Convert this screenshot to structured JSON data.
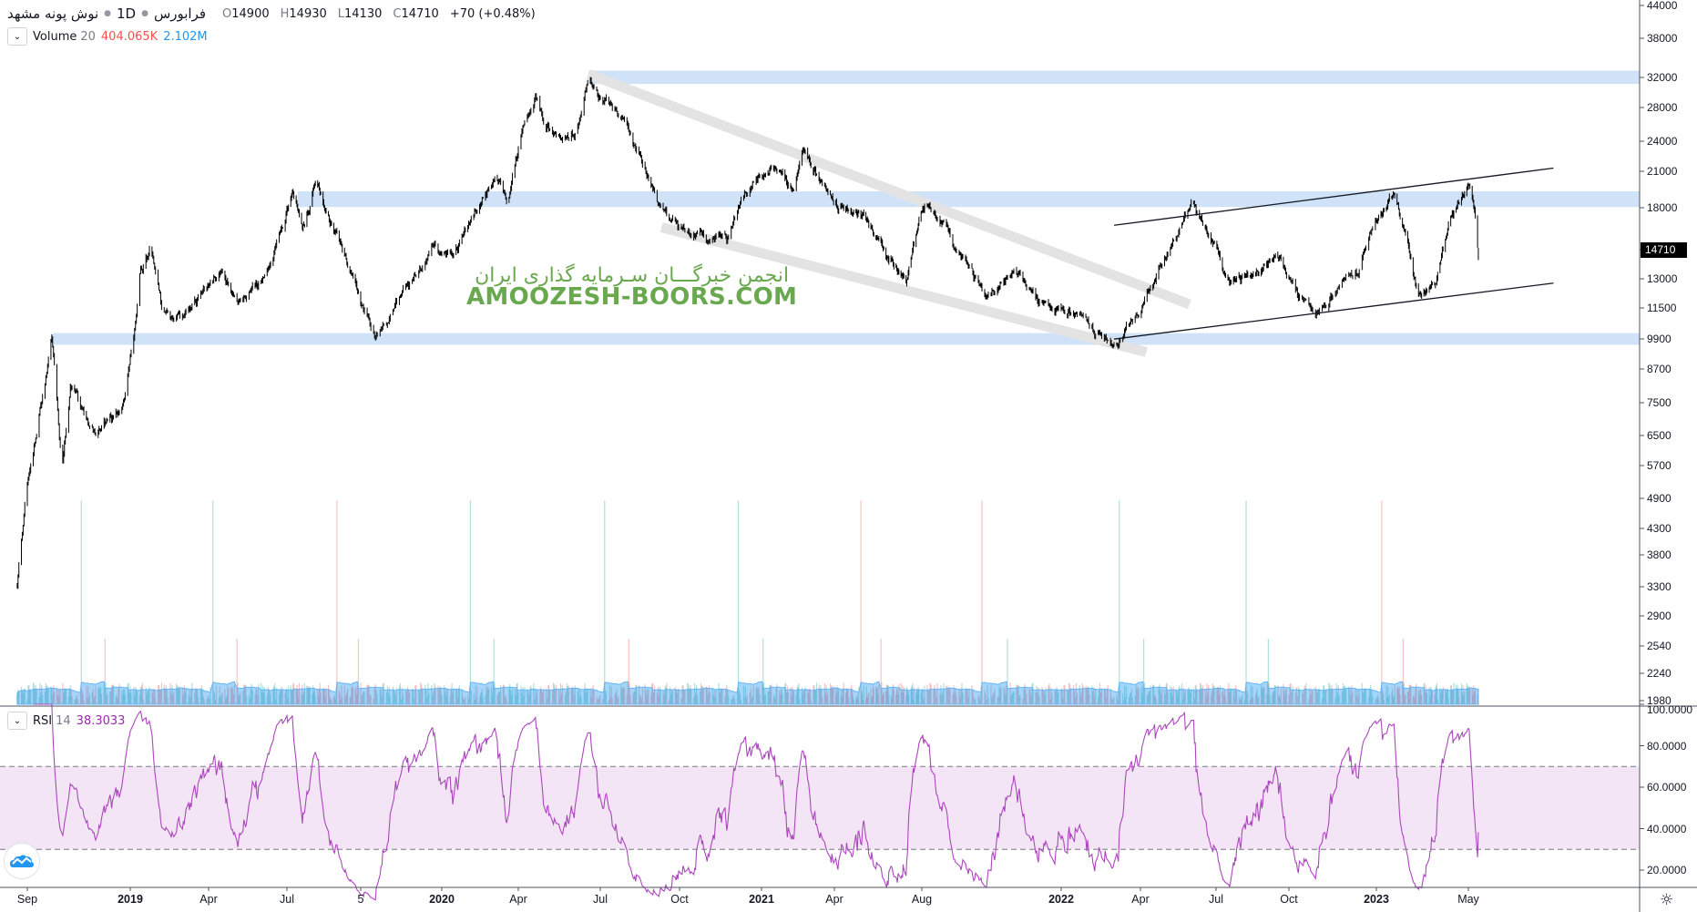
{
  "header": {
    "symbol": "نوش پونه مشهد",
    "interval": "1D",
    "exchange": "فرابورس",
    "open_label": "O",
    "open": "14900",
    "high_label": "H",
    "high": "14930",
    "low_label": "L",
    "low": "14130",
    "close_label": "C",
    "close": "14710",
    "change": "+70 (+0.48%)"
  },
  "volume_legend": {
    "name": "Volume",
    "period": "20",
    "value": "404.065K",
    "ma_value": "2.102M",
    "value_color": "#ef5350",
    "ma_color": "#2196f3"
  },
  "rsi_legend": {
    "name": "RSI",
    "period": "14",
    "value": "38.3033",
    "color": "#9c27b0"
  },
  "watermark": {
    "line1": "انجمن خبرگـــان سـرمایه گذاری ایران",
    "line2": "AMOOZESH-BOORS.COM",
    "color": "#6aa84f"
  },
  "price_axis": {
    "scale": "log",
    "ticks": [
      "44000",
      "38000",
      "32000",
      "28000",
      "24000",
      "21000",
      "18000",
      "13000",
      "11500",
      "9900",
      "8700",
      "7500",
      "6500",
      "5700",
      "4900",
      "4300",
      "3800",
      "3300",
      "2900",
      "2540",
      "2240",
      "1980"
    ],
    "last_price": "14710"
  },
  "rsi_axis": {
    "ticks": [
      "100.0000",
      "80.0000",
      "60.0000",
      "40.0000",
      "20.0000"
    ],
    "upper_band": 70,
    "lower_band": 30
  },
  "time_axis": {
    "ticks": [
      {
        "label": "Sep",
        "date": "2018-09-01"
      },
      {
        "label": "2019",
        "date": "2019-01-01"
      },
      {
        "label": "Apr",
        "date": "2019-04-01"
      },
      {
        "label": "Jul",
        "date": "2019-07-01"
      },
      {
        "label": "5",
        "date": "2019-10-05"
      },
      {
        "label": "2020",
        "date": "2020-01-01"
      },
      {
        "label": "Apr",
        "date": "2020-04-01"
      },
      {
        "label": "Jul",
        "date": "2020-07-01"
      },
      {
        "label": "Oct",
        "date": "2020-10-01"
      },
      {
        "label": "2021",
        "date": "2021-01-01"
      },
      {
        "label": "Apr",
        "date": "2021-04-01"
      },
      {
        "label": "Aug",
        "date": "2021-08-01"
      },
      {
        "label": "2022",
        "date": "2022-01-01"
      },
      {
        "label": "Apr",
        "date": "2022-04-01"
      },
      {
        "label": "Jul",
        "date": "2022-07-01"
      },
      {
        "label": "Oct",
        "date": "2022-10-01"
      },
      {
        "label": "2023",
        "date": "2023-01-01"
      },
      {
        "label": "May",
        "date": "2023-05-01"
      }
    ]
  },
  "chart_data": {
    "type": "candlestick",
    "price_scale": "log",
    "ylim": [
      1980,
      44000
    ],
    "close_waypoints": [
      [
        "2018-08-20",
        3300
      ],
      [
        "2018-08-29",
        4700
      ],
      [
        "2018-09-30",
        10000
      ],
      [
        "2018-10-12",
        5600
      ],
      [
        "2018-10-22",
        8000
      ],
      [
        "2018-11-22",
        6300
      ],
      [
        "2018-12-25",
        7500
      ],
      [
        "2019-01-07",
        10500
      ],
      [
        "2019-01-12",
        13000
      ],
      [
        "2019-01-25",
        15000
      ],
      [
        "2019-02-07",
        11000
      ],
      [
        "2019-03-10",
        11000
      ],
      [
        "2019-04-15",
        13500
      ],
      [
        "2019-05-07",
        11500
      ],
      [
        "2019-06-05",
        13000
      ],
      [
        "2019-07-08",
        19000
      ],
      [
        "2019-07-21",
        16000
      ],
      [
        "2019-08-08",
        20500
      ],
      [
        "2019-08-22",
        17500
      ],
      [
        "2019-09-15",
        14000
      ],
      [
        "2019-10-20",
        10000
      ],
      [
        "2019-11-20",
        12000
      ],
      [
        "2019-12-25",
        15000
      ],
      [
        "2020-01-15",
        14000
      ],
      [
        "2020-02-10",
        17500
      ],
      [
        "2020-03-05",
        20500
      ],
      [
        "2020-03-20",
        18000
      ],
      [
        "2020-04-05",
        25000
      ],
      [
        "2020-04-20",
        29500
      ],
      [
        "2020-04-30",
        26000
      ],
      [
        "2020-05-20",
        23500
      ],
      [
        "2020-06-07",
        26000
      ],
      [
        "2020-06-18",
        32500
      ],
      [
        "2020-07-01",
        29000
      ],
      [
        "2020-07-27",
        26000
      ],
      [
        "2020-08-28",
        20000
      ],
      [
        "2020-09-20",
        16500
      ],
      [
        "2020-10-15",
        15800
      ],
      [
        "2020-11-25",
        15200
      ],
      [
        "2020-12-10",
        18500
      ],
      [
        "2020-12-28",
        20500
      ],
      [
        "2021-01-20",
        21000
      ],
      [
        "2021-02-10",
        19000
      ],
      [
        "2021-02-20",
        23500
      ],
      [
        "2021-03-25",
        18500
      ],
      [
        "2021-05-05",
        17500
      ],
      [
        "2021-06-15",
        14000
      ],
      [
        "2021-07-10",
        13000
      ],
      [
        "2021-08-05",
        18000
      ],
      [
        "2021-08-25",
        16500
      ],
      [
        "2021-09-20",
        13500
      ],
      [
        "2021-10-10",
        11800
      ],
      [
        "2021-11-10",
        13500
      ],
      [
        "2021-12-05",
        11700
      ],
      [
        "2022-01-05",
        11300
      ],
      [
        "2022-02-05",
        10500
      ],
      [
        "2022-03-05",
        9700
      ],
      [
        "2022-04-01",
        11000
      ],
      [
        "2022-04-25",
        13500
      ],
      [
        "2022-05-15",
        16000
      ],
      [
        "2022-06-03",
        17800
      ],
      [
        "2022-06-25",
        15500
      ],
      [
        "2022-07-20",
        12500
      ],
      [
        "2022-08-15",
        13000
      ],
      [
        "2022-09-15",
        14500
      ],
      [
        "2022-10-10",
        12000
      ],
      [
        "2022-11-01",
        11200
      ],
      [
        "2022-11-25",
        12500
      ],
      [
        "2022-12-12",
        13500
      ],
      [
        "2022-12-30",
        17000
      ],
      [
        "2023-01-25",
        18500
      ],
      [
        "2023-02-10",
        15000
      ],
      [
        "2023-02-25",
        11800
      ],
      [
        "2023-03-20",
        13000
      ],
      [
        "2023-04-10",
        17000
      ],
      [
        "2023-05-01",
        19800
      ],
      [
        "2023-05-10",
        17000
      ],
      [
        "2023-05-14",
        14710
      ]
    ],
    "zones": [
      {
        "from": "2020-06-18",
        "low": 31000,
        "high": 32900,
        "color": "#cfe2f8"
      },
      {
        "from": "2019-07-15",
        "low": 17900,
        "high": 19200,
        "color": "#cfe2f8"
      },
      {
        "from": "2018-10-01",
        "low": 9680,
        "high": 10200,
        "color": "#cfe2f8"
      }
    ],
    "trend_lines": [
      {
        "p1": [
          "2022-03-02",
          16500
        ],
        "p2": [
          "2023-08-20",
          21300
        ],
        "color": "#131722",
        "style": "thin"
      },
      {
        "p1": [
          "2022-03-02",
          9930
        ],
        "p2": [
          "2023-08-20",
          12750
        ],
        "color": "#131722",
        "style": "thin"
      },
      {
        "p1": [
          "2020-06-18",
          32400
        ],
        "p2": [
          "2022-05-30",
          11600
        ],
        "color": "#e3e3e3",
        "style": "thick"
      },
      {
        "p1": [
          "2020-09-10",
          16350
        ],
        "p2": [
          "2022-04-08",
          9370
        ],
        "color": "#e3e3e3",
        "style": "thick"
      }
    ],
    "volume": {
      "latest": "404.065K",
      "ma_period": 20,
      "ma_latest": "2.102M",
      "up_color": "#26a69a",
      "down_color": "#ef5350",
      "ma_color": "#2196f3"
    },
    "rsi": {
      "period": 14,
      "latest": 38.3033,
      "bands": [
        30,
        70
      ],
      "line_color": "#ab47bc",
      "band_fill": "#f3e5f5"
    }
  }
}
